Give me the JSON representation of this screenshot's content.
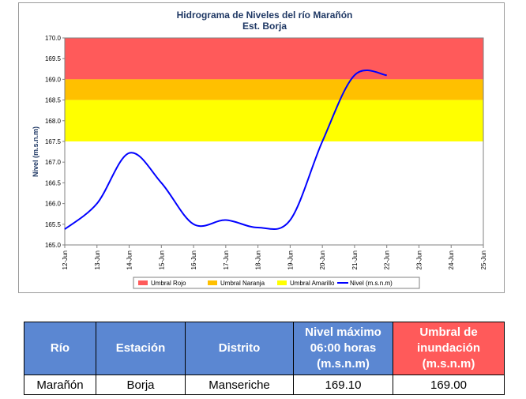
{
  "chart_data": {
    "type": "line",
    "title": "Hidrograma de Niveles del río Marañón",
    "subtitle": "Est. Borja",
    "ylabel": "Nivel (m.s.n.m)",
    "ylim": [
      165.0,
      170.0
    ],
    "yticks": [
      "165.0",
      "165.5",
      "166.0",
      "166.5",
      "167.0",
      "167.5",
      "168.0",
      "168.5",
      "169.0",
      "169.5",
      "170.0"
    ],
    "categories": [
      "12-Jun",
      "13-Jun",
      "14-Jun",
      "15-Jun",
      "16-Jun",
      "17-Jun",
      "18-Jun",
      "19-Jun",
      "20-Jun",
      "21-Jun",
      "22-Jun",
      "23-Jun",
      "24-Jun",
      "25-Jun"
    ],
    "bands": [
      {
        "name": "Umbral Rojo",
        "from": 169.0,
        "to": 170.0,
        "color": "#ff5a5a"
      },
      {
        "name": "Umbral Naranja",
        "from": 168.5,
        "to": 169.0,
        "color": "#ffc000"
      },
      {
        "name": "Umbral Amarillo",
        "from": 167.5,
        "to": 168.5,
        "color": "#ffff00"
      }
    ],
    "series": [
      {
        "name": "Nivel (m.s.n.m)",
        "color": "#0000ff",
        "values": [
          165.38,
          166.0,
          167.22,
          166.5,
          165.5,
          165.6,
          165.42,
          165.6,
          167.5,
          169.1,
          169.1,
          null,
          null,
          null
        ]
      }
    ],
    "legend_position": "bottom"
  },
  "table": {
    "headers": [
      "Río",
      "Estación",
      "Distrito",
      "Nivel máximo\n06:00 horas\n(m.s.n.m)",
      "Umbral de\ninundación\n(m.s.n.m)"
    ],
    "row": [
      "Marañón",
      "Borja",
      "Manseriche",
      "169.10",
      "169.00"
    ]
  }
}
